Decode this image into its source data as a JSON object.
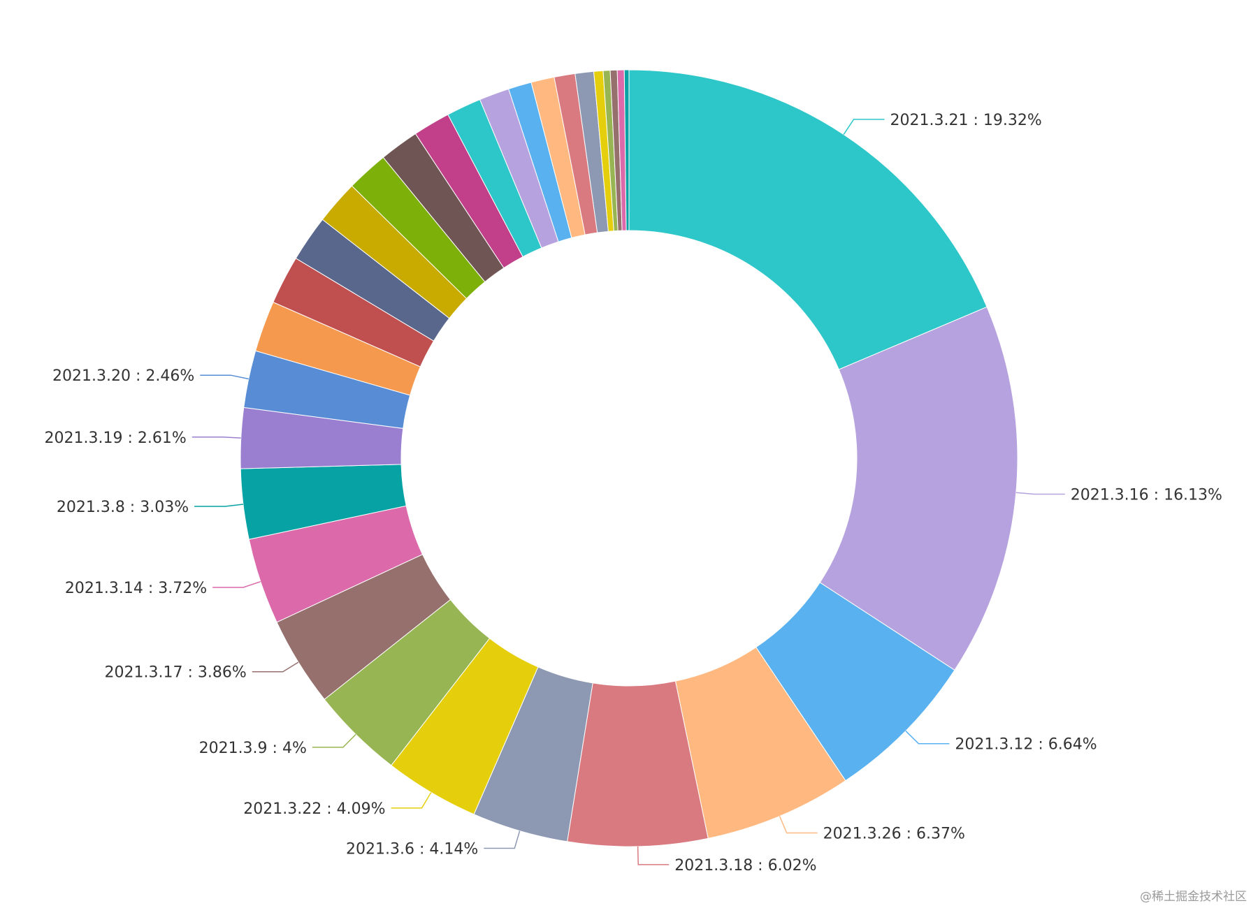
{
  "chart_data": {
    "type": "pie",
    "style": "donut",
    "start": "top, clockwise",
    "slices": [
      {
        "label": "2021.3.21",
        "value": 19.32,
        "color": "#2ec7c9",
        "labeled": true
      },
      {
        "label": "2021.3.16",
        "value": 16.13,
        "color": "#b6a2de",
        "labeled": true
      },
      {
        "label": "2021.3.12",
        "value": 6.64,
        "color": "#5ab1ef",
        "labeled": true
      },
      {
        "label": "2021.3.26",
        "value": 6.37,
        "color": "#ffb980",
        "labeled": true
      },
      {
        "label": "2021.3.18",
        "value": 6.02,
        "color": "#d87a80",
        "labeled": true
      },
      {
        "label": "2021.3.6",
        "value": 4.14,
        "color": "#8d98b3",
        "labeled": true
      },
      {
        "label": "2021.3.22",
        "value": 4.09,
        "color": "#e5cf0d",
        "labeled": true
      },
      {
        "label": "2021.3.9",
        "value": 4.0,
        "color": "#97b552",
        "labeled": true
      },
      {
        "label": "2021.3.17",
        "value": 3.86,
        "color": "#95706d",
        "labeled": true
      },
      {
        "label": "2021.3.14",
        "value": 3.72,
        "color": "#dc69aa",
        "labeled": true
      },
      {
        "label": "2021.3.8",
        "value": 3.03,
        "color": "#07a2a4",
        "labeled": true
      },
      {
        "label": "2021.3.19",
        "value": 2.61,
        "color": "#9a7fd1",
        "labeled": true
      },
      {
        "label": "2021.3.20",
        "value": 2.46,
        "color": "#588dd5",
        "labeled": true
      },
      {
        "label": "",
        "value": 2.2,
        "color": "#f5994e",
        "labeled": false
      },
      {
        "label": "",
        "value": 2.1,
        "color": "#c05050",
        "labeled": false
      },
      {
        "label": "",
        "value": 2.0,
        "color": "#59678c",
        "labeled": false
      },
      {
        "label": "",
        "value": 1.9,
        "color": "#c9ab00",
        "labeled": false
      },
      {
        "label": "",
        "value": 1.8,
        "color": "#7eb00a",
        "labeled": false
      },
      {
        "label": "",
        "value": 1.7,
        "color": "#6f5553",
        "labeled": false
      },
      {
        "label": "",
        "value": 1.6,
        "color": "#c14089",
        "labeled": false
      },
      {
        "label": "",
        "value": 1.5,
        "color": "#2ec7c9",
        "labeled": false
      },
      {
        "label": "",
        "value": 1.3,
        "color": "#b6a2de",
        "labeled": false
      },
      {
        "label": "",
        "value": 1.0,
        "color": "#5ab1ef",
        "labeled": false
      },
      {
        "label": "",
        "value": 1.0,
        "color": "#ffb980",
        "labeled": false
      },
      {
        "label": "",
        "value": 0.9,
        "color": "#d87a80",
        "labeled": false
      },
      {
        "label": "",
        "value": 0.8,
        "color": "#8d98b3",
        "labeled": false
      },
      {
        "label": "",
        "value": 0.4,
        "color": "#e5cf0d",
        "labeled": false
      },
      {
        "label": "",
        "value": 0.3,
        "color": "#97b552",
        "labeled": false
      },
      {
        "label": "",
        "value": 0.3,
        "color": "#95706d",
        "labeled": false
      },
      {
        "label": "",
        "value": 0.3,
        "color": "#dc69aa",
        "labeled": false
      },
      {
        "label": "",
        "value": 0.2,
        "color": "#07a2a4",
        "labeled": false
      }
    ]
  },
  "watermark": "@稀土掘金技术社区"
}
